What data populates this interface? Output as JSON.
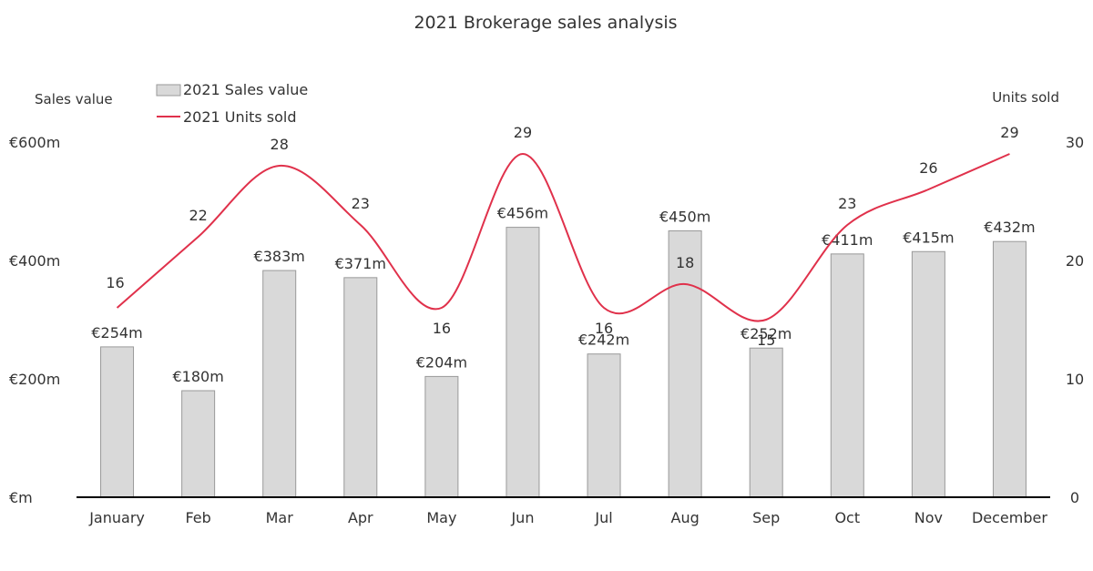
{
  "chart_data": {
    "type": "bar",
    "title": "2021 Brokerage sales analysis",
    "categories": [
      "January",
      "Feb",
      "Mar",
      "Apr",
      "May",
      "Jun",
      "Jul",
      "Aug",
      "Sep",
      "Oct",
      "Nov",
      "December"
    ],
    "series": [
      {
        "name": "2021 Sales value",
        "type": "bar",
        "axis": "left",
        "values": [
          254,
          180,
          383,
          371,
          204,
          456,
          242,
          450,
          252,
          411,
          415,
          432
        ],
        "labels": [
          "€254m",
          "€180m",
          "€383m",
          "€371m",
          "€204m",
          "€456m",
          "€242m",
          "€450m",
          "€252m",
          "€411m",
          "€415m",
          "€432m"
        ],
        "color": "#d9d9d9",
        "stroke": "#999999"
      },
      {
        "name": "2021 Units sold",
        "type": "line",
        "smooth": true,
        "axis": "right",
        "values": [
          16,
          22,
          28,
          23,
          16,
          29,
          16,
          18,
          15,
          23,
          26,
          29
        ],
        "labels": [
          "16",
          "22",
          "28",
          "23",
          "16",
          "29",
          "16",
          "18",
          "15",
          "23",
          "26",
          "29"
        ],
        "color": "#e0314b"
      }
    ],
    "y_left": {
      "label": "Sales value",
      "range": [
        0,
        600
      ],
      "ticks": [
        0,
        200,
        400,
        600
      ],
      "tick_labels": [
        "€m",
        "€200m",
        "€400m",
        "€600m"
      ]
    },
    "y_right": {
      "label": "Units sold",
      "range": [
        0,
        30
      ],
      "ticks": [
        0,
        10,
        20,
        30
      ],
      "tick_labels": [
        "0",
        "10",
        "20",
        "30"
      ]
    },
    "grid": false,
    "legend": "top-left",
    "axis_color": "#000000"
  }
}
